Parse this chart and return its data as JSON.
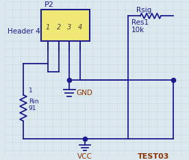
{
  "bg_color": "#dde8ee",
  "circuit_color": "#1a1a8c",
  "gnd_color": "#8B3300",
  "vcc_color": "#8B3300",
  "test_color": "#8B3300",
  "header_fill": "#f0e875",
  "header_border": "#1a1a8c",
  "p2_label": "P2",
  "header_label": "Header 4",
  "res_label1": "Rsig",
  "res_label2": "Res1",
  "res_label3": "10k",
  "rin_label1": "1",
  "rin_label2": "Rin",
  "rin_label3": "91",
  "gnd_label": "GND",
  "vcc_label": "VCC",
  "test_label": "TEST03",
  "pin_labels": [
    "1",
    "2",
    "3",
    "4"
  ]
}
